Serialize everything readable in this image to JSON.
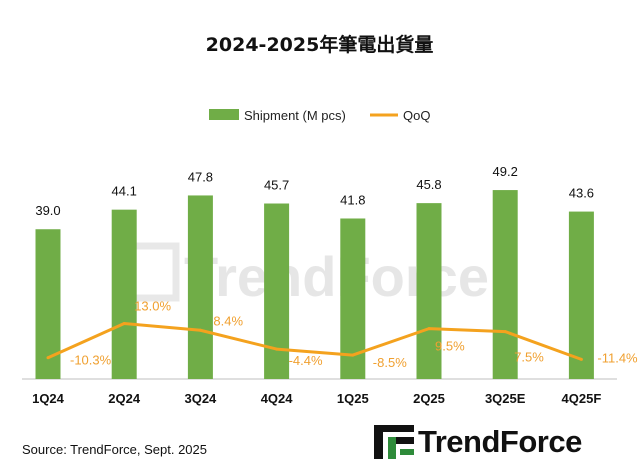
{
  "title": "2024-2025年筆電出貨量",
  "source": "Source: TrendForce, Sept. 2025",
  "logo_text": "TrendForce",
  "watermark_text": "TrendForce",
  "colors": {
    "bar": "#70ad47",
    "line": "#f4a21e",
    "qoq_label": "#f0a030",
    "axis": "#bfbfbf",
    "watermark": "#e4e4e4"
  },
  "chart_data": {
    "type": "bar",
    "categories": [
      "1Q24",
      "2Q24",
      "3Q24",
      "4Q24",
      "1Q25",
      "2Q25",
      "3Q25E",
      "4Q25F"
    ],
    "series": [
      {
        "name": "Shipment (M pcs)",
        "type": "bar",
        "axis": "primary",
        "values": [
          39.0,
          44.1,
          47.8,
          45.7,
          41.8,
          45.8,
          49.2,
          43.6
        ],
        "labels": [
          "39.0",
          "44.1",
          "47.8",
          "45.7",
          "41.8",
          "45.8",
          "49.2",
          "43.6"
        ]
      },
      {
        "name": "QoQ",
        "type": "line",
        "axis": "secondary",
        "values": [
          -10.3,
          13.0,
          8.4,
          -4.4,
          -8.5,
          9.5,
          7.5,
          -11.4
        ],
        "labels": [
          "-10.3%",
          "13.0%",
          "8.4%",
          "-4.4%",
          "-8.5%",
          "9.5%",
          "7.5%",
          "-11.4%"
        ]
      }
    ],
    "legend": {
      "position": "top-center",
      "entries": [
        "Shipment (M pcs)",
        "QoQ"
      ]
    },
    "grid": false
  }
}
